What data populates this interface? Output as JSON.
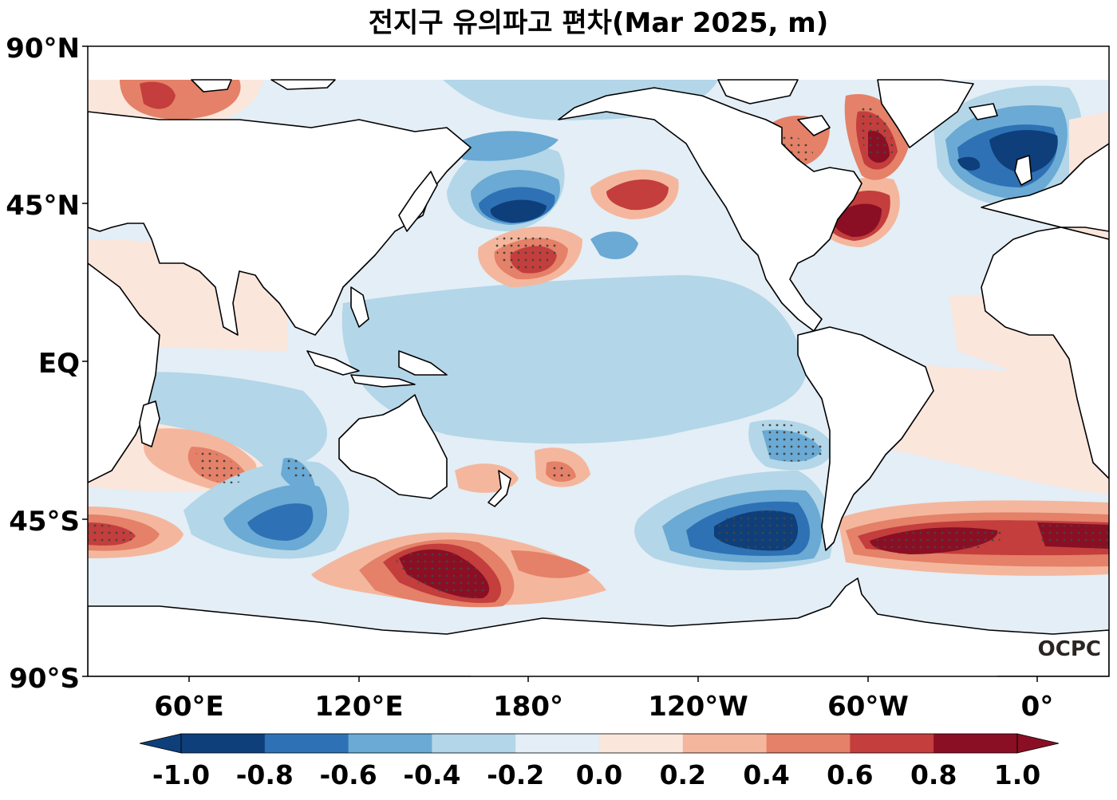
{
  "title": "전지구 유의파고 편차(Mar 2025, m)",
  "logo": "OCPC",
  "lat_ticks": [
    "90°N",
    "45°N",
    "EQ",
    "45°S",
    "90°S"
  ],
  "lon_ticks": [
    "60°E",
    "120°E",
    "180°",
    "120°W",
    "60°W",
    "0°"
  ],
  "colorbar": {
    "ticks": [
      "-1.0",
      "-0.8",
      "-0.6",
      "-0.4",
      "-0.2",
      "0.0",
      "0.2",
      "0.4",
      "0.6",
      "0.8",
      "1.0"
    ],
    "colors": [
      "#0e3f7a",
      "#2e72b5",
      "#6aaad4",
      "#b3d6e8",
      "#e3eef6",
      "#fbe6dc",
      "#f4b79d",
      "#e48168",
      "#c33e3c",
      "#8a0f24"
    ],
    "extend": "both"
  },
  "chart_data": {
    "type": "heatmap",
    "title": "전지구 유의파고 편차(Mar 2025, m)",
    "variable": "significant wave height anomaly",
    "units": "m",
    "xrange_lon": [
      25,
      385
    ],
    "yrange_lat": [
      -90,
      90
    ],
    "levels": [
      -1.0,
      -0.8,
      -0.6,
      -0.4,
      -0.2,
      0.0,
      0.2,
      0.4,
      0.6,
      0.8,
      1.0
    ],
    "features": [
      {
        "name": "Southern Ocean south of Australia positive",
        "lon": 145,
        "lat": -56,
        "value": 1.0
      },
      {
        "name": "South Atlantic positive belt",
        "lon": -40,
        "lat": -50,
        "value": 0.9
      },
      {
        "name": "Southeast Pacific negative",
        "lon": -85,
        "lat": -48,
        "value": -1.0
      },
      {
        "name": "South Indian Ocean negative",
        "lon": 92,
        "lat": -46,
        "value": -0.6
      },
      {
        "name": "North Pacific negative",
        "lon": 177,
        "lat": 42,
        "value": -0.9
      },
      {
        "name": "Central North Pacific positive",
        "lon": -175,
        "lat": 28,
        "value": 0.8
      },
      {
        "name": "Gulf of Alaska positive",
        "lon": -140,
        "lat": 48,
        "value": 0.7
      },
      {
        "name": "Northwest Atlantic positive",
        "lon": -62,
        "lat": 42,
        "value": 1.0
      },
      {
        "name": "Labrador Sea positive",
        "lon": -55,
        "lat": 60,
        "value": 1.0
      },
      {
        "name": "Northeast Atlantic negative",
        "lon": -20,
        "lat": 58,
        "value": -1.0
      },
      {
        "name": "Barents Sea positive",
        "lon": 45,
        "lat": 76,
        "value": 0.7
      },
      {
        "name": "Southeast Pacific off Chile negative",
        "lon": -77,
        "lat": -22,
        "value": -0.4
      }
    ]
  }
}
